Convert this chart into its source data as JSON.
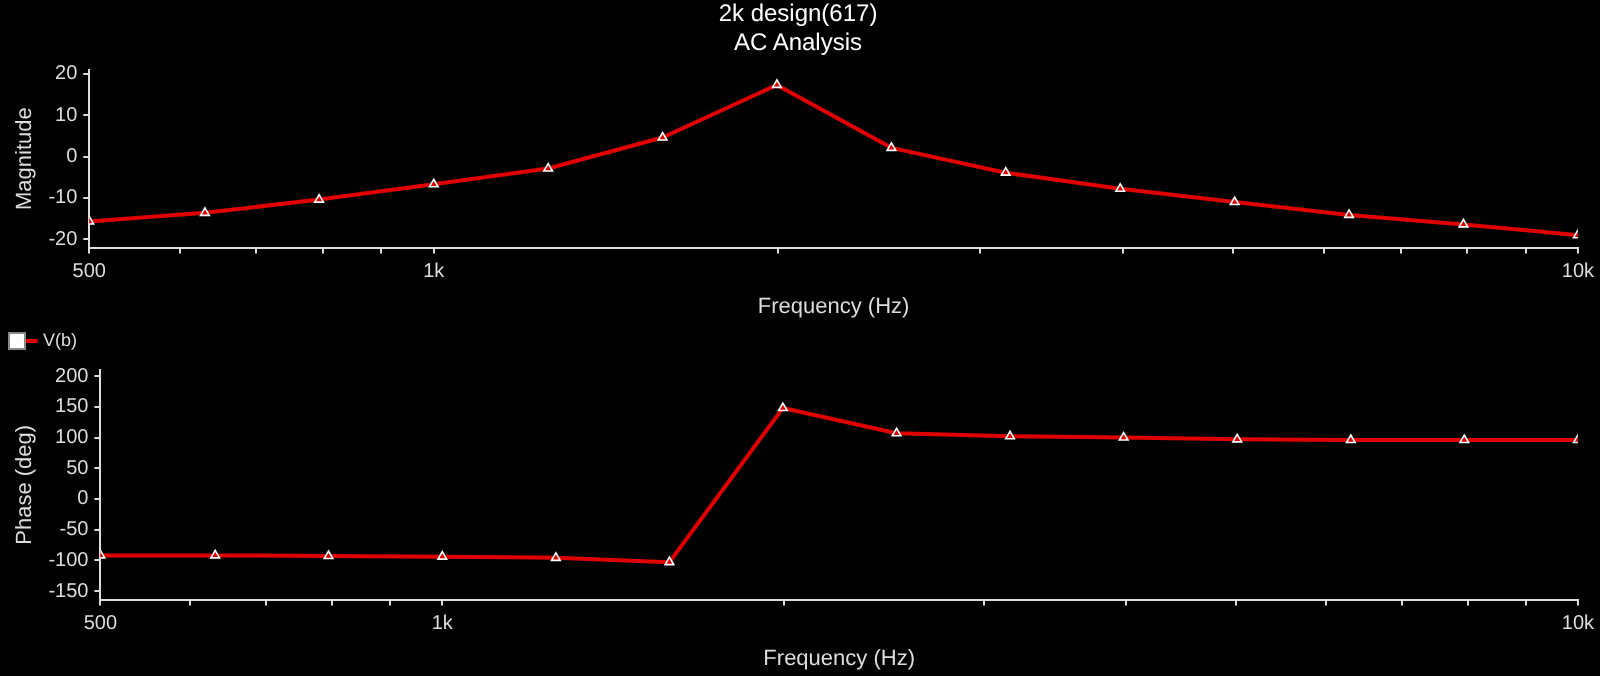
{
  "chart_data": [
    {
      "type": "line",
      "title": "2k design(617)",
      "subtitle": "AC Analysis",
      "xlabel": "Frequency (Hz)",
      "ylabel": "Magnitude",
      "log": "x",
      "x": [
        500,
        631,
        794,
        1000,
        1259,
        1585,
        1995,
        2512,
        3162,
        3981,
        5012,
        6310,
        7943,
        10000
      ],
      "series": [
        {
          "color": "#e00000",
          "values": [
            -15.7,
            -13.6,
            -10.4,
            -6.7,
            -2.9,
            4.6,
            17.3,
            2.1,
            -3.9,
            -7.8,
            -11.0,
            -14.1,
            -16.4,
            -19.0
          ]
        }
      ],
      "xlim": [
        500,
        10000
      ],
      "xticks": [
        500,
        {
          "value": 600,
          "label": null
        },
        {
          "value": 700,
          "label": null
        },
        {
          "value": 800,
          "label": null
        },
        {
          "value": 900,
          "label": null
        },
        {
          "value": 1000,
          "label": "1k"
        },
        {
          "value": 2000,
          "label": null
        },
        {
          "value": 3000,
          "label": null
        },
        {
          "value": 4000,
          "label": null
        },
        {
          "value": 5000,
          "label": null
        },
        {
          "value": 6000,
          "label": null
        },
        {
          "value": 7000,
          "label": null
        },
        {
          "value": 8000,
          "label": null
        },
        {
          "value": 9000,
          "label": null
        },
        {
          "value": 10000,
          "label": "10k"
        }
      ],
      "ylim": [
        -22,
        21
      ],
      "yticks": [
        -20,
        -10,
        0,
        10,
        20
      ],
      "grid": false,
      "legend": false,
      "marker": "triangle",
      "line_style": "solid"
    },
    {
      "type": "line",
      "xlabel": "Frequency (Hz)",
      "ylabel": "Phase (deg)",
      "log": "x",
      "x": [
        500,
        631,
        794,
        1000,
        1259,
        1585,
        1995,
        2512,
        3162,
        3981,
        5012,
        6310,
        7943,
        10000
      ],
      "series": [
        {
          "name": "V(b)",
          "color": "#e00000",
          "values": [
            -92,
            -92,
            -93,
            -94,
            -96,
            -103,
            148,
            107,
            102,
            100,
            97,
            96,
            96,
            96
          ]
        }
      ],
      "xlim": [
        500,
        10000
      ],
      "xticks": [
        500,
        {
          "value": 600,
          "label": null
        },
        {
          "value": 700,
          "label": null
        },
        {
          "value": 800,
          "label": null
        },
        {
          "value": 900,
          "label": null
        },
        {
          "value": 1000,
          "label": "1k"
        },
        {
          "value": 2000,
          "label": null
        },
        {
          "value": 3000,
          "label": null
        },
        {
          "value": 4000,
          "label": null
        },
        {
          "value": 5000,
          "label": null
        },
        {
          "value": 6000,
          "label": null
        },
        {
          "value": 7000,
          "label": null
        },
        {
          "value": 8000,
          "label": null
        },
        {
          "value": 9000,
          "label": null
        },
        {
          "value": 10000,
          "label": "10k"
        }
      ],
      "ylim": [
        -164,
        210
      ],
      "yticks": [
        -150,
        -100,
        -50,
        0,
        50,
        100,
        150,
        200
      ],
      "grid": false,
      "legend": "top left",
      "marker": "triangle",
      "line_style": "solid"
    }
  ]
}
